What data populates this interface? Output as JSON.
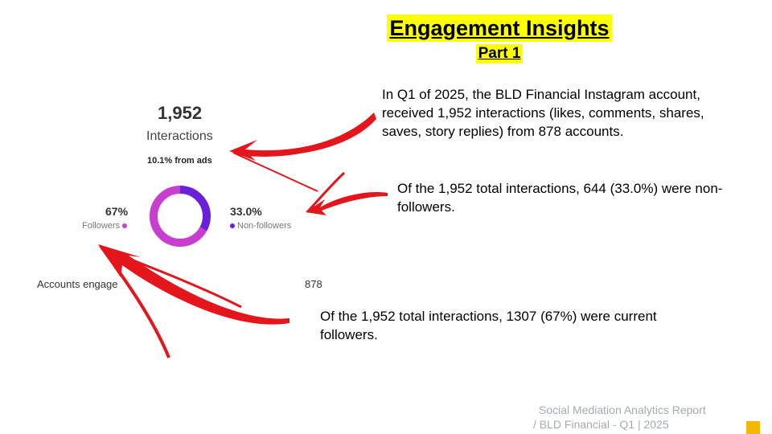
{
  "header": {
    "title": "Engagement Insights",
    "subtitle": "Part 1"
  },
  "paragraphs": {
    "interactions": "In Q1 of 2025, the BLD Financial Instagram account, received 1,952 interactions (likes, comments, shares, saves, story replies) from 878 accounts.",
    "non_followers": "Of the 1,952 total interactions, 644 (33.0%) were non-followers.",
    "followers": "Of the 1,952 total interactions, 1307 (67%) were current followers."
  },
  "stats": {
    "total": "1,952",
    "total_label": "Interactions",
    "ads_note": "10.1% from ads",
    "followers_pct": "67%",
    "followers_label": "Followers",
    "non_followers_pct": "33.0%",
    "non_followers_label": "Non-followers",
    "accounts_label": "Accounts engage",
    "accounts_value": "878",
    "followers_share": 0.67,
    "non_followers_share": 0.33
  },
  "footer": {
    "line1": "Social Mediation Analytics Report",
    "line2": "/ BLD Financial - Q1  |  2025"
  },
  "colors": {
    "highlight": "#ffff00",
    "followers": "#c83fd0",
    "non_followers": "#6a1fd8",
    "arrow": "#e4151b",
    "footer_text": "#a3aab2",
    "corner_square": "#f5b800"
  },
  "icons": {
    "arrows": "red-brush-arrow-icon"
  }
}
